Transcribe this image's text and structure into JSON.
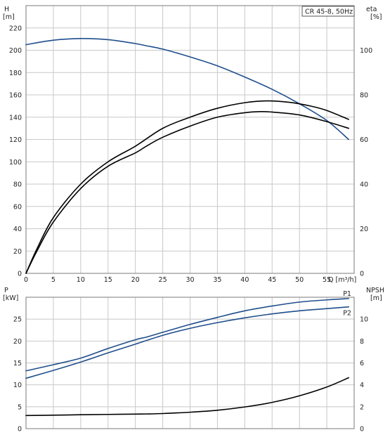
{
  "colors": {
    "background": "#ffffff",
    "grid": "#c8c8c8",
    "blue_curve": "#1f4e8c",
    "black_curve": "#000000"
  },
  "chart_data": [
    {
      "type": "line",
      "legend_label": "CR 45-8, 50Hz",
      "legend_position": "top-right",
      "xlabel": "Q [m³/h]",
      "x_ticks": [
        "0",
        "5",
        "10",
        "15",
        "20",
        "25",
        "30",
        "35",
        "40",
        "45",
        "50",
        "55"
      ],
      "xlim": [
        0,
        60
      ],
      "ylabel_left": "H",
      "ylabel_left_unit": "[m]",
      "ylim_left": [
        0,
        240
      ],
      "y_ticks_left": [
        "0",
        "20",
        "40",
        "60",
        "80",
        "100",
        "120",
        "140",
        "160",
        "180",
        "200",
        "220"
      ],
      "ylabel_right": "eta",
      "ylabel_right_unit": "[%]",
      "ylim_right": [
        0,
        120
      ],
      "y_ticks_right": [
        "0",
        "20",
        "40",
        "60",
        "80",
        "100"
      ],
      "grid": true,
      "series": [
        {
          "axis": "left",
          "color": "#1f4e8c",
          "x": [
            0,
            5,
            10,
            15,
            20,
            22,
            25,
            30,
            35,
            40,
            45,
            50,
            55,
            59
          ],
          "y": [
            205,
            209,
            210.5,
            209.5,
            206,
            204,
            201,
            194,
            186,
            176,
            165,
            152,
            137,
            120
          ]
        },
        {
          "axis": "right",
          "color": "#000000",
          "x": [
            0,
            2,
            5,
            10,
            15,
            20,
            22,
            25,
            30,
            35,
            40,
            43,
            45,
            50,
            55,
            59
          ],
          "y": [
            0,
            10,
            23,
            38,
            48,
            54,
            57,
            61,
            66,
            70,
            72,
            72.5,
            72.3,
            71,
            68,
            65
          ]
        },
        {
          "axis": "right",
          "color": "#000000",
          "x": [
            0,
            2,
            5,
            10,
            15,
            20,
            25,
            30,
            35,
            40,
            44,
            48,
            52,
            55,
            59
          ],
          "y": [
            0,
            11,
            25,
            40,
            50,
            57,
            65,
            70,
            74,
            76.5,
            77.3,
            76.7,
            75,
            73,
            69
          ]
        }
      ]
    },
    {
      "type": "line",
      "xlim": [
        0,
        60
      ],
      "ylabel_left": "P",
      "ylabel_left_unit": "[kW]",
      "ylim_left": [
        0,
        30
      ],
      "y_ticks_left": [
        "0",
        "5",
        "10",
        "15",
        "20",
        "25"
      ],
      "ylabel_right": "NPSH",
      "ylabel_right_unit": "[m]",
      "ylim_right": [
        0,
        12
      ],
      "y_ticks_right": [
        "0",
        "2",
        "4",
        "6",
        "8",
        "10"
      ],
      "grid": true,
      "series": [
        {
          "name": "P1",
          "axis": "left",
          "color": "#1f4e8c",
          "x": [
            0,
            5,
            10,
            15,
            20,
            22,
            25,
            30,
            35,
            40,
            45,
            50,
            55,
            59
          ],
          "y": [
            13.2,
            14.6,
            16.1,
            18.3,
            20.3,
            20.9,
            22.0,
            23.8,
            25.4,
            26.9,
            28.0,
            28.9,
            29.4,
            29.7
          ]
        },
        {
          "name": "P2",
          "axis": "left",
          "color": "#1f4e8c",
          "x": [
            0,
            5,
            10,
            15,
            20,
            25,
            30,
            35,
            40,
            45,
            50,
            55,
            59
          ],
          "y": [
            11.5,
            13.3,
            15.2,
            17.3,
            19.3,
            21.3,
            22.9,
            24.2,
            25.3,
            26.2,
            26.9,
            27.4,
            27.8
          ]
        },
        {
          "axis": "right",
          "color": "#000000",
          "x": [
            0,
            5,
            10,
            15,
            20,
            22,
            25,
            30,
            35,
            40,
            45,
            50,
            55,
            59
          ],
          "y": [
            1.2,
            1.23,
            1.27,
            1.3,
            1.33,
            1.34,
            1.38,
            1.5,
            1.68,
            1.98,
            2.4,
            3.0,
            3.8,
            4.65
          ]
        }
      ]
    }
  ]
}
